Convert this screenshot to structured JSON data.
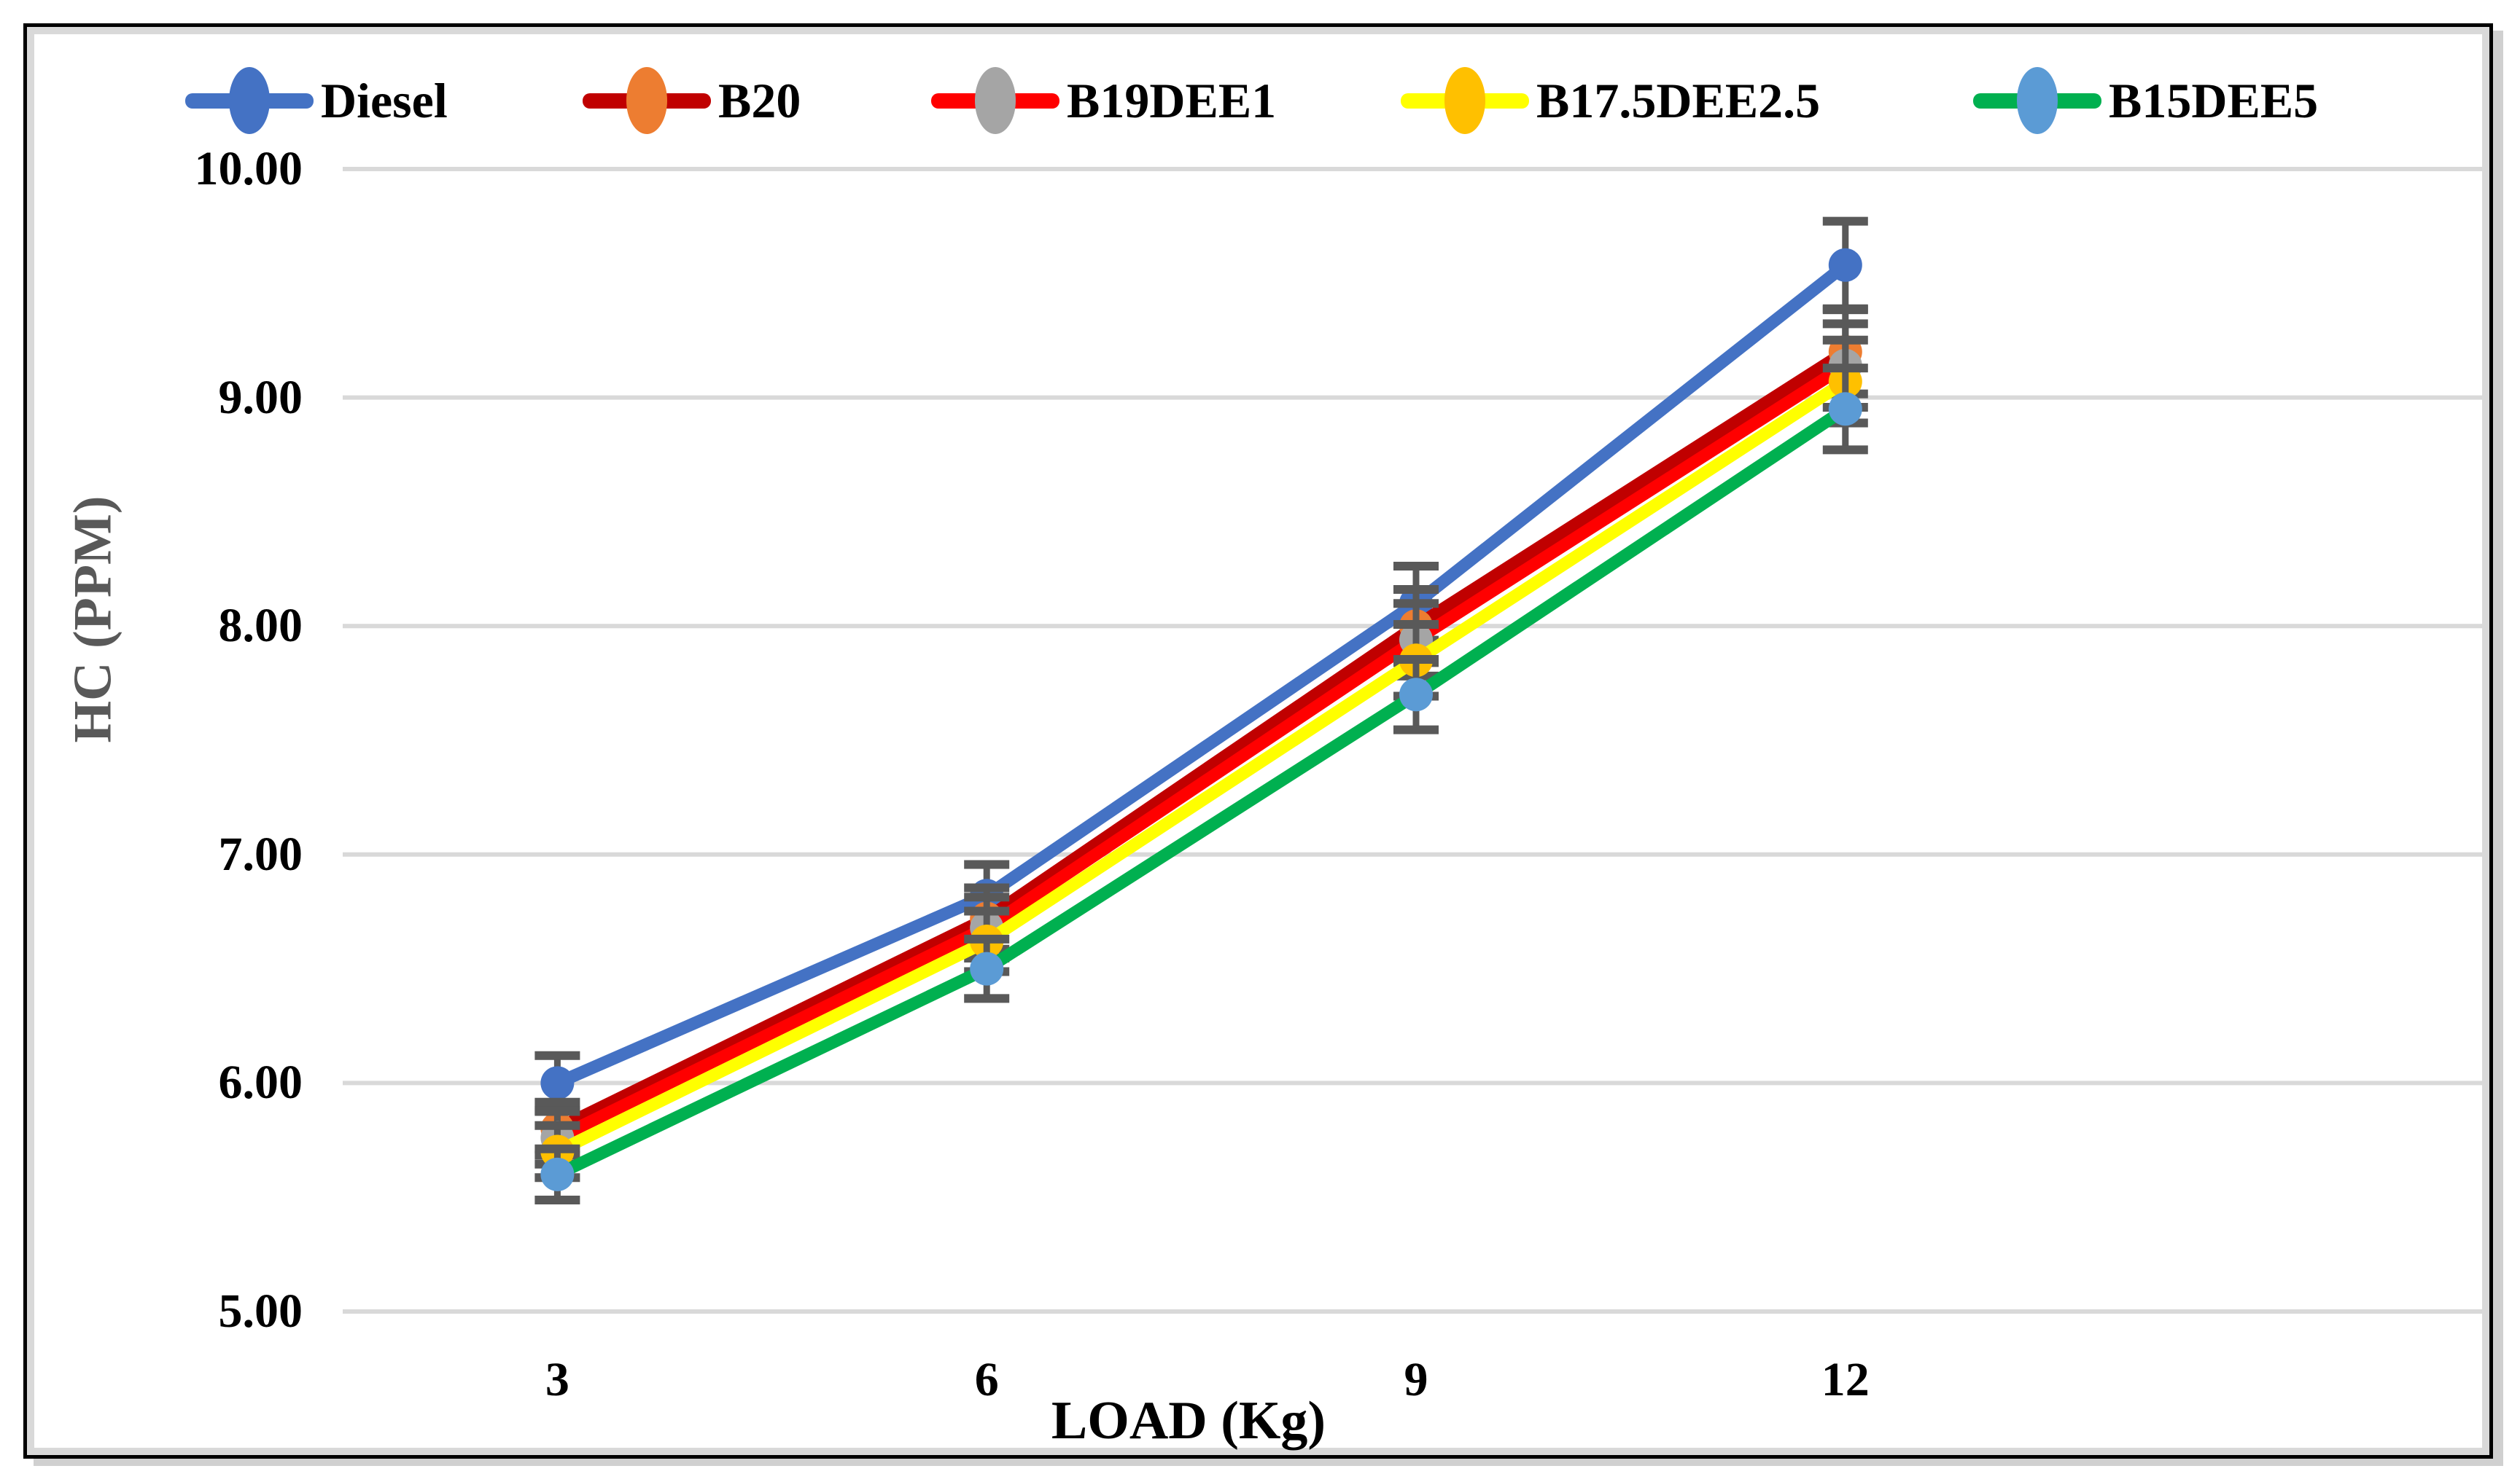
{
  "chart_data": {
    "type": "line",
    "title": "",
    "xlabel": "LOAD (Kg)",
    "ylabel": "HC (PPM)",
    "x": [
      3,
      6,
      9,
      12
    ],
    "x_tick_labels": [
      "3",
      "6",
      "9",
      "12"
    ],
    "y_tick_labels": [
      "10.00",
      "9.00",
      "8.00",
      "7.00",
      "6.00",
      "5.00"
    ],
    "ylim": [
      5.0,
      10.0
    ],
    "error_bar_pct": 2,
    "grid": "horizontal-major",
    "legend_position": "top",
    "layout": {
      "category_slots": 5
    },
    "colors": {
      "gridline": "#D9D9D9",
      "error_bar": "#595959",
      "axis_text": "#000000",
      "y_title": "#595959",
      "frame_border": "#000000",
      "frame_inner": "#D9D9D9"
    },
    "series": [
      {
        "name": "Diesel",
        "line_color": "#4472C4",
        "marker_color": "#4472C4",
        "values": [
          6.0,
          6.82,
          8.1,
          9.58
        ]
      },
      {
        "name": "B20",
        "line_color": "#C00000",
        "marker_color": "#ED7D31",
        "values": [
          5.8,
          6.72,
          8.0,
          9.2
        ]
      },
      {
        "name": "B19DEE1",
        "line_color": "#FF0000",
        "marker_color": "#A5A5A5",
        "values": [
          5.76,
          6.68,
          7.94,
          9.14
        ]
      },
      {
        "name": "B17.5DEE2.5",
        "line_color": "#FFFF00",
        "marker_color": "#FFC000",
        "values": [
          5.7,
          6.62,
          7.85,
          9.07
        ]
      },
      {
        "name": "B15DEE5",
        "line_color": "#00B050",
        "marker_color": "#5B9BD5",
        "values": [
          5.6,
          6.5,
          7.7,
          8.95
        ]
      }
    ]
  }
}
